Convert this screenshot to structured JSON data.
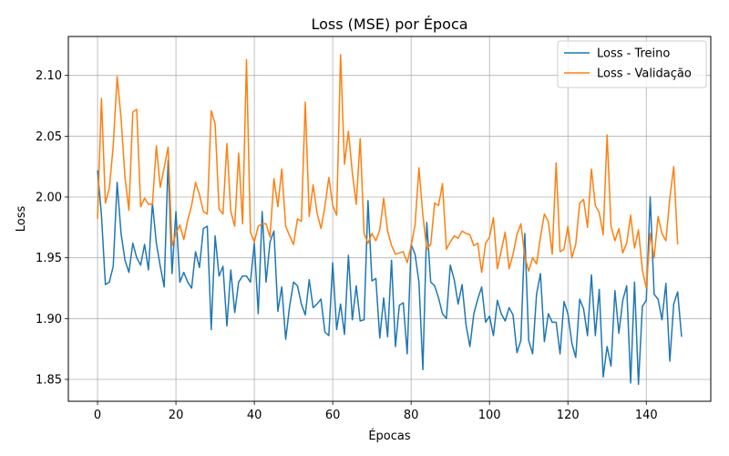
{
  "chart_data": {
    "type": "line",
    "title": "Loss (MSE) por Época",
    "xlabel": "Épocas",
    "ylabel": "Loss",
    "xlim": [
      -7.45,
      156.45
    ],
    "ylim": [
      1.832,
      2.132
    ],
    "xticks": [
      0,
      20,
      40,
      60,
      80,
      100,
      120,
      140
    ],
    "yticks": [
      1.85,
      1.9,
      1.95,
      2.0,
      2.05,
      2.1
    ],
    "ytick_labels": [
      "1.85",
      "1.90",
      "1.95",
      "2.00",
      "2.05",
      "2.10"
    ],
    "grid": true,
    "legend_position": "top-right",
    "series": [
      {
        "name": "Loss - Treino",
        "color": "#1f77b4",
        "values": [
          2.022,
          1.985,
          1.928,
          1.93,
          1.943,
          2.012,
          1.97,
          1.948,
          1.938,
          1.962,
          1.95,
          1.944,
          1.961,
          1.94,
          1.995,
          1.962,
          1.943,
          1.926,
          2.03,
          1.937,
          1.988,
          1.93,
          1.938,
          1.93,
          1.925,
          1.955,
          1.942,
          1.974,
          1.976,
          1.891,
          1.968,
          1.935,
          1.943,
          1.894,
          1.94,
          1.905,
          1.93,
          1.935,
          1.935,
          1.93,
          1.962,
          1.904,
          1.988,
          1.93,
          1.963,
          1.972,
          1.906,
          1.926,
          1.883,
          1.91,
          1.93,
          1.927,
          1.912,
          1.903,
          1.932,
          1.909,
          1.912,
          1.916,
          1.889,
          1.886,
          1.946,
          1.891,
          1.912,
          1.887,
          1.952,
          1.899,
          1.927,
          1.898,
          1.899,
          1.997,
          1.931,
          1.933,
          1.884,
          1.917,
          1.885,
          1.948,
          1.877,
          1.911,
          1.913,
          1.871,
          1.961,
          1.953,
          1.93,
          1.858,
          1.979,
          1.93,
          1.927,
          1.917,
          1.904,
          1.9,
          1.944,
          1.932,
          1.912,
          1.928,
          1.895,
          1.877,
          1.904,
          1.916,
          1.926,
          1.897,
          1.902,
          1.886,
          1.915,
          1.904,
          1.898,
          1.909,
          1.903,
          1.872,
          1.882,
          1.97,
          1.882,
          1.871,
          1.92,
          1.937,
          1.881,
          1.904,
          1.897,
          1.897,
          1.871,
          1.914,
          1.904,
          1.88,
          1.868,
          1.916,
          1.908,
          1.886,
          1.936,
          1.886,
          1.924,
          1.852,
          1.877,
          1.861,
          1.923,
          1.888,
          1.915,
          1.927,
          1.847,
          1.93,
          1.846,
          1.91,
          1.915,
          2.0,
          1.92,
          1.916,
          1.899,
          1.929,
          1.865,
          1.912,
          1.922,
          1.885
        ]
      },
      {
        "name": "Loss - Validação",
        "color": "#ff7f0e",
        "values": [
          1.982,
          2.081,
          1.995,
          2.007,
          2.042,
          2.099,
          2.065,
          2.016,
          1.989,
          2.07,
          2.072,
          1.992,
          1.999,
          1.994,
          1.994,
          2.042,
          2.008,
          2.024,
          2.041,
          1.96,
          1.97,
          1.977,
          1.965,
          1.981,
          1.993,
          2.012,
          2.002,
          1.988,
          1.986,
          2.071,
          2.06,
          1.99,
          1.986,
          2.044,
          1.988,
          1.976,
          2.036,
          1.978,
          2.113,
          1.971,
          1.963,
          1.976,
          1.978,
          1.978,
          1.967,
          2.015,
          1.992,
          2.023,
          1.976,
          1.968,
          1.961,
          1.982,
          1.98,
          2.078,
          1.984,
          2.01,
          1.987,
          1.974,
          1.992,
          2.016,
          1.993,
          1.985,
          2.117,
          2.027,
          2.054,
          2.02,
          1.994,
          2.048,
          1.97,
          1.962,
          1.97,
          1.964,
          1.973,
          1.999,
          1.972,
          1.96,
          1.953,
          1.954,
          1.955,
          1.946,
          1.96,
          1.977,
          2.024,
          1.985,
          1.957,
          1.961,
          1.995,
          1.993,
          2.011,
          1.957,
          1.963,
          1.968,
          1.966,
          1.972,
          1.97,
          1.969,
          1.96,
          1.962,
          1.938,
          1.962,
          1.967,
          1.983,
          1.941,
          1.956,
          1.971,
          1.941,
          1.953,
          1.969,
          1.978,
          1.951,
          1.939,
          1.95,
          1.945,
          1.967,
          1.986,
          1.98,
          1.953,
          2.028,
          1.955,
          1.957,
          1.976,
          1.95,
          1.961,
          1.995,
          1.998,
          1.975,
          2.023,
          1.993,
          1.987,
          1.969,
          2.051,
          1.976,
          1.964,
          1.974,
          1.954,
          1.962,
          1.985,
          1.958,
          1.973,
          1.94,
          1.925,
          1.97,
          1.95,
          1.984,
          1.97,
          1.964,
          1.999,
          2.025,
          1.961
        ]
      }
    ]
  }
}
